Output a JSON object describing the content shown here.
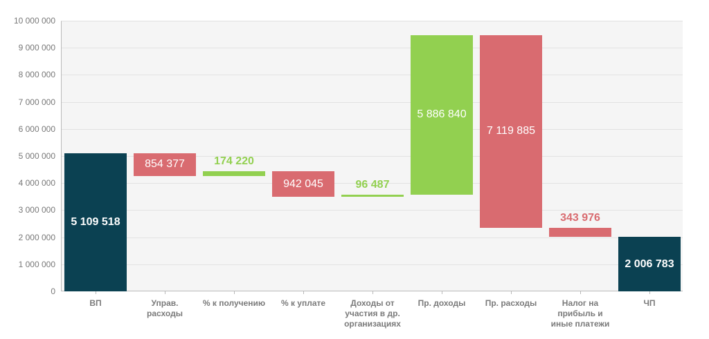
{
  "chart_data": {
    "type": "waterfall",
    "title": "",
    "xlabel": "",
    "ylabel": "",
    "ylim": [
      0,
      10000000
    ],
    "y_ticks": [
      "0",
      "1 000 000",
      "2 000 000",
      "3 000 000",
      "4 000 000",
      "5 000 000",
      "6 000 000",
      "7 000 000",
      "8 000 000",
      "9 000 000",
      "10 000 000"
    ],
    "grid": true,
    "legend": "none",
    "categories": [
      "ВП",
      "Управ. расходы",
      "% к получению",
      "% к уплате",
      "Доходы от участия в др. организациях",
      "Пр. доходы",
      "Пр. расходы",
      "Налог на прибыль и иные платежи",
      "ЧП"
    ],
    "values": [
      5109518,
      -854377,
      174220,
      -942045,
      96487,
      5886840,
      -7119885,
      -343976,
      2006783
    ],
    "labels": [
      "5 109 518",
      "854 377",
      "174 220",
      "942 045",
      "96 487",
      "5 886 840",
      "7 119 885",
      "343 976",
      "2 006 783"
    ],
    "bar_types": [
      "total",
      "decrease",
      "increase",
      "decrease",
      "increase",
      "increase",
      "decrease",
      "decrease",
      "total"
    ],
    "colors": {
      "total": "#0b4152",
      "increase": "#92d050",
      "decrease": "#d96b70"
    }
  },
  "x_labels": [
    [
      "ВП"
    ],
    [
      "Управ.",
      "расходы"
    ],
    [
      "% к получению"
    ],
    [
      "% к уплате"
    ],
    [
      "Доходы от",
      "участия в др.",
      "организациях"
    ],
    [
      "Пр. доходы"
    ],
    [
      "Пр. расходы"
    ],
    [
      "Налог на",
      "прибыль и",
      "иные платежи"
    ],
    [
      "ЧП"
    ]
  ]
}
